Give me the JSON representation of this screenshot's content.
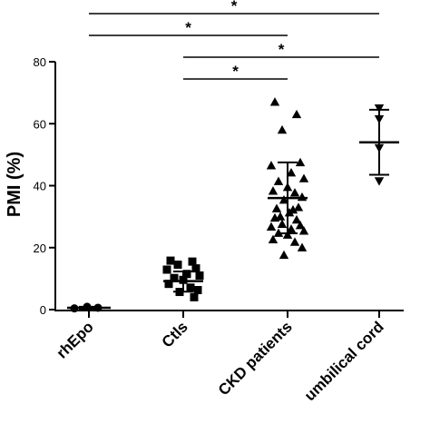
{
  "chart_data": {
    "type": "scatter",
    "ylabel": "PMI (%)",
    "ylim": [
      0,
      80
    ],
    "yticks": [
      "0",
      "20",
      "40",
      "60",
      "80"
    ],
    "categories": [
      "rhEpo",
      "Ctls",
      "CKD patients",
      "umbilical cord"
    ],
    "groups": [
      {
        "name": "rhEpo",
        "marker": "circle",
        "mean": 0.6,
        "sd_low": 0.3,
        "sd_high": 0.9,
        "values": [
          0.4,
          0.9,
          0.6
        ]
      },
      {
        "name": "Ctls",
        "marker": "square",
        "mean": 9.2,
        "sd_low": 5.8,
        "sd_high": 12.3,
        "values": [
          15.8,
          15.5,
          14.5,
          13.3,
          12.9,
          11.5,
          11.0,
          10.2,
          9.6,
          8.3,
          7.1,
          6.3,
          5.7,
          4.0
        ]
      },
      {
        "name": "CKD patients",
        "marker": "triangle",
        "mean": 36.0,
        "sd_low": 24.6,
        "sd_high": 47.5,
        "values": [
          67.0,
          63.0,
          58.0,
          47.5,
          46.5,
          44.2,
          42.3,
          41.4,
          39.5,
          38.3,
          37.7,
          36.3,
          35.4,
          33.0,
          32.6,
          32.2,
          31.3,
          30.0,
          29.6,
          29.0,
          27.6,
          27.2,
          26.7,
          26.0,
          25.4,
          24.7,
          24.1,
          22.6,
          21.8,
          20.0,
          17.6
        ]
      },
      {
        "name": "umbilical cord",
        "marker": "triangle-down",
        "mean": 54.0,
        "sd_low": 43.5,
        "sd_high": 64.5,
        "values": [
          65.0,
          61.5,
          52.2,
          41.5
        ]
      }
    ],
    "significance": [
      {
        "from": "rhEpo",
        "to": "umbilical cord",
        "label": "*"
      },
      {
        "from": "rhEpo",
        "to": "CKD patients",
        "label": "*"
      },
      {
        "from": "Ctls",
        "to": "umbilical cord",
        "label": "*"
      },
      {
        "from": "Ctls",
        "to": "CKD patients",
        "label": "*"
      }
    ]
  }
}
